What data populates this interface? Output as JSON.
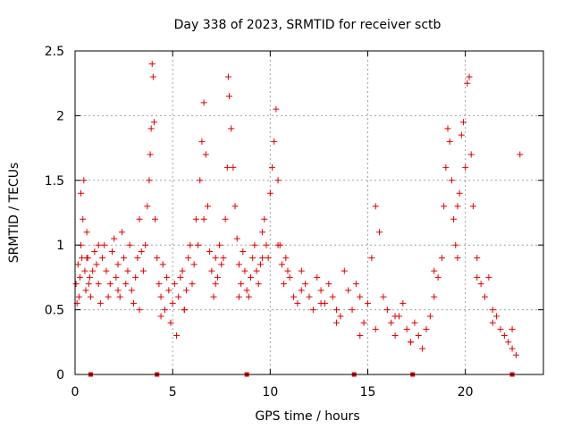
{
  "chart_data": {
    "type": "scatter",
    "title": "Day 338 of 2023, SRMTID for receiver sctb",
    "xlabel": "GPS time / hours",
    "ylabel": "SRMTID / TECUs",
    "xlim": [
      0,
      24
    ],
    "ylim": [
      0,
      2.5
    ],
    "x_ticks": [
      0,
      5,
      10,
      15,
      20
    ],
    "x_tick_labels": [
      "0",
      "5",
      "10",
      "15",
      "20"
    ],
    "y_ticks": [
      0,
      0.5,
      1,
      1.5,
      2,
      2.5
    ],
    "y_tick_labels": [
      "0",
      "0.5",
      "1",
      "1.5",
      "2",
      "2.5"
    ],
    "grid": true,
    "marker": "plus",
    "color": "#e00000",
    "zero_markers_x": [
      0.8,
      4.2,
      8.8,
      14.3,
      17.3,
      22.4
    ],
    "series": [
      {
        "name": "SRMTID",
        "x": [
          0.05,
          0.1,
          0.15,
          0.2,
          0.25,
          0.3,
          0.35,
          0.4,
          0.45,
          0.5,
          0.55,
          0.6,
          0.65,
          0.7,
          0.75,
          0.8,
          0.9,
          1.0,
          1.1,
          1.2,
          1.3,
          1.4,
          1.5,
          1.6,
          1.7,
          1.8,
          1.9,
          2.0,
          2.1,
          2.2,
          2.3,
          2.4,
          2.5,
          2.6,
          2.7,
          2.8,
          2.9,
          3.0,
          3.1,
          3.2,
          3.3,
          3.4,
          3.5,
          3.6,
          3.7,
          3.8,
          3.85,
          3.9,
          3.95,
          4.0,
          4.05,
          4.1,
          4.2,
          4.3,
          4.4,
          4.5,
          4.6,
          4.7,
          4.8,
          4.9,
          5.0,
          5.1,
          5.2,
          5.3,
          5.4,
          5.5,
          5.6,
          5.7,
          5.8,
          5.9,
          6.0,
          6.1,
          6.2,
          6.3,
          6.4,
          6.5,
          6.6,
          6.7,
          6.8,
          6.9,
          7.0,
          7.1,
          7.2,
          7.3,
          7.4,
          7.5,
          7.6,
          7.7,
          7.8,
          7.85,
          7.9,
          8.0,
          8.1,
          8.2,
          8.3,
          8.4,
          8.5,
          8.6,
          8.7,
          8.8,
          8.9,
          9.0,
          9.1,
          9.2,
          9.3,
          9.4,
          9.5,
          9.6,
          9.7,
          9.8,
          9.9,
          10.0,
          10.1,
          10.2,
          10.3,
          10.4,
          10.5,
          10.6,
          10.7,
          10.8,
          10.9,
          11.0,
          11.2,
          11.4,
          11.6,
          11.8,
          12.0,
          12.2,
          12.4,
          12.6,
          12.8,
          13.0,
          13.2,
          13.4,
          13.6,
          13.8,
          14.0,
          14.2,
          14.4,
          14.6,
          14.8,
          15.0,
          15.2,
          15.4,
          15.6,
          15.8,
          16.0,
          16.2,
          16.4,
          16.6,
          16.8,
          17.0,
          17.2,
          17.4,
          17.6,
          17.8,
          18.0,
          18.2,
          18.4,
          18.6,
          18.8,
          18.9,
          19.0,
          19.1,
          19.2,
          19.3,
          19.4,
          19.5,
          19.6,
          19.7,
          19.8,
          19.9,
          20.0,
          20.1,
          20.2,
          20.3,
          20.4,
          20.6,
          20.8,
          21.0,
          21.2,
          21.4,
          21.6,
          21.8,
          22.0,
          22.2,
          22.4,
          22.6,
          22.8,
          0.3,
          0.6,
          1.2,
          2.2,
          3.3,
          4.4,
          5.6,
          6.6,
          7.2,
          8.4,
          9.6,
          10.4,
          11.6,
          12.6,
          13.4,
          14.6,
          15.4,
          16.4,
          17.2,
          18.4,
          19.6,
          20.6,
          21.4,
          22.4
        ],
        "y": [
          0.7,
          0.55,
          0.85,
          0.6,
          0.75,
          1.0,
          0.9,
          1.2,
          1.5,
          0.8,
          0.65,
          1.1,
          0.9,
          0.7,
          0.75,
          0.6,
          0.8,
          0.95,
          0.85,
          0.7,
          0.55,
          0.9,
          1.0,
          0.8,
          0.6,
          0.7,
          0.95,
          1.05,
          0.75,
          0.85,
          0.6,
          1.1,
          0.9,
          0.7,
          0.8,
          1.0,
          0.65,
          0.55,
          0.75,
          0.9,
          1.2,
          0.95,
          0.8,
          1.0,
          1.3,
          1.5,
          1.7,
          1.9,
          2.4,
          2.3,
          1.95,
          1.2,
          0.9,
          0.7,
          0.6,
          0.85,
          0.5,
          0.75,
          0.65,
          0.4,
          0.55,
          0.7,
          0.3,
          0.6,
          0.75,
          0.8,
          0.5,
          0.65,
          0.9,
          1.0,
          0.7,
          0.85,
          1.2,
          1.0,
          1.5,
          1.8,
          2.1,
          1.7,
          1.3,
          0.95,
          0.8,
          0.6,
          0.7,
          0.75,
          1.0,
          0.85,
          0.9,
          1.2,
          1.6,
          2.3,
          2.15,
          1.9,
          1.6,
          1.3,
          1.05,
          0.85,
          0.7,
          0.95,
          0.8,
          0.65,
          0.6,
          0.75,
          0.9,
          1.0,
          0.8,
          0.7,
          0.85,
          1.1,
          1.2,
          1.0,
          0.9,
          1.4,
          1.6,
          1.8,
          2.05,
          1.5,
          1.0,
          0.85,
          0.7,
          0.9,
          0.8,
          0.75,
          0.6,
          0.55,
          0.8,
          0.7,
          0.6,
          0.5,
          0.75,
          0.65,
          0.55,
          0.7,
          0.6,
          0.5,
          0.45,
          0.8,
          0.65,
          0.5,
          0.7,
          0.6,
          0.4,
          0.55,
          0.9,
          1.3,
          1.1,
          0.6,
          0.5,
          0.4,
          0.3,
          0.45,
          0.55,
          0.35,
          0.25,
          0.4,
          0.3,
          0.2,
          0.35,
          0.45,
          0.6,
          0.75,
          0.9,
          1.3,
          1.6,
          1.9,
          1.8,
          1.5,
          1.2,
          1.0,
          0.9,
          1.4,
          1.85,
          1.95,
          1.6,
          2.25,
          2.3,
          1.7,
          1.3,
          0.9,
          0.7,
          0.6,
          0.75,
          0.5,
          0.45,
          0.35,
          0.3,
          0.25,
          0.2,
          0.15,
          1.7,
          1.4,
          0.9,
          1.0,
          0.65,
          0.5,
          0.45,
          0.5,
          1.2,
          0.9,
          0.6,
          0.9,
          1.0,
          0.65,
          0.55,
          0.4,
          0.3,
          0.35,
          0.45,
          0.25,
          0.8,
          1.3,
          0.75,
          0.4,
          0.35
        ]
      }
    ]
  }
}
